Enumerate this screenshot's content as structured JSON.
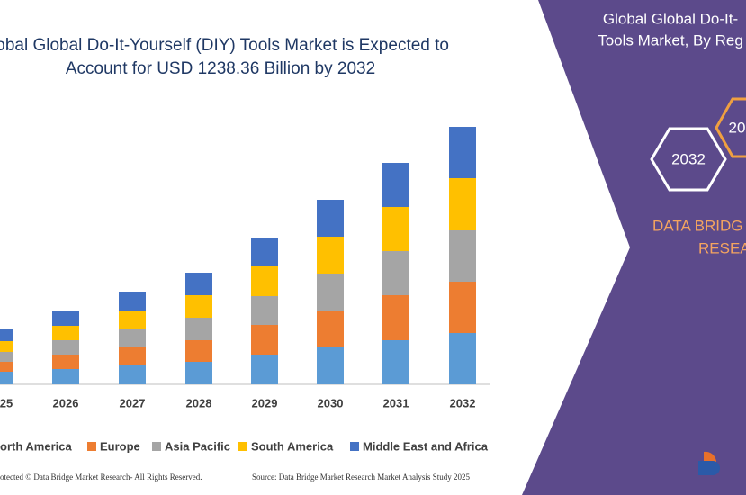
{
  "chart_data": {
    "type": "stacked-bar",
    "title": [
      "lobal Global Do-It-Yourself (DIY) Tools Market is Expected to",
      "Account for USD 1238.36 Billion by 2032"
    ],
    "categories": [
      "25",
      "2026",
      "2027",
      "2028",
      "2029",
      "2030",
      "2031",
      "2032"
    ],
    "series": [
      {
        "name": "orth America",
        "color": "#5b9bd5",
        "values": [
          14,
          17,
          21,
          25,
          33,
          41,
          49,
          57
        ]
      },
      {
        "name": "Europe",
        "color": "#ed7d31",
        "values": [
          11,
          16,
          20,
          24,
          33,
          41,
          50,
          57
        ]
      },
      {
        "name": "Asia Pacific",
        "color": "#a5a5a5",
        "values": [
          11,
          16,
          20,
          25,
          32,
          41,
          49,
          57
        ]
      },
      {
        "name": "South America",
        "color": "#ffc000",
        "values": [
          12,
          16,
          21,
          25,
          33,
          41,
          49,
          58
        ]
      },
      {
        "name": "Middle East and Africa",
        "color": "#4472c4",
        "values": [
          13,
          17,
          21,
          25,
          32,
          41,
          49,
          57
        ]
      }
    ]
  },
  "panel": {
    "title": [
      "Global Global Do-It-",
      "Tools Market, By Reg"
    ],
    "hexagons": [
      "2032",
      "20"
    ],
    "brand": [
      "DATA BRIDG",
      "RESEA"
    ]
  },
  "footer": {
    "copyright": "otected © Data Bridge Market Research- All Rights Reserved.",
    "source": "Source: Data Bridge Market Research  Market Analysis Study 2025"
  }
}
